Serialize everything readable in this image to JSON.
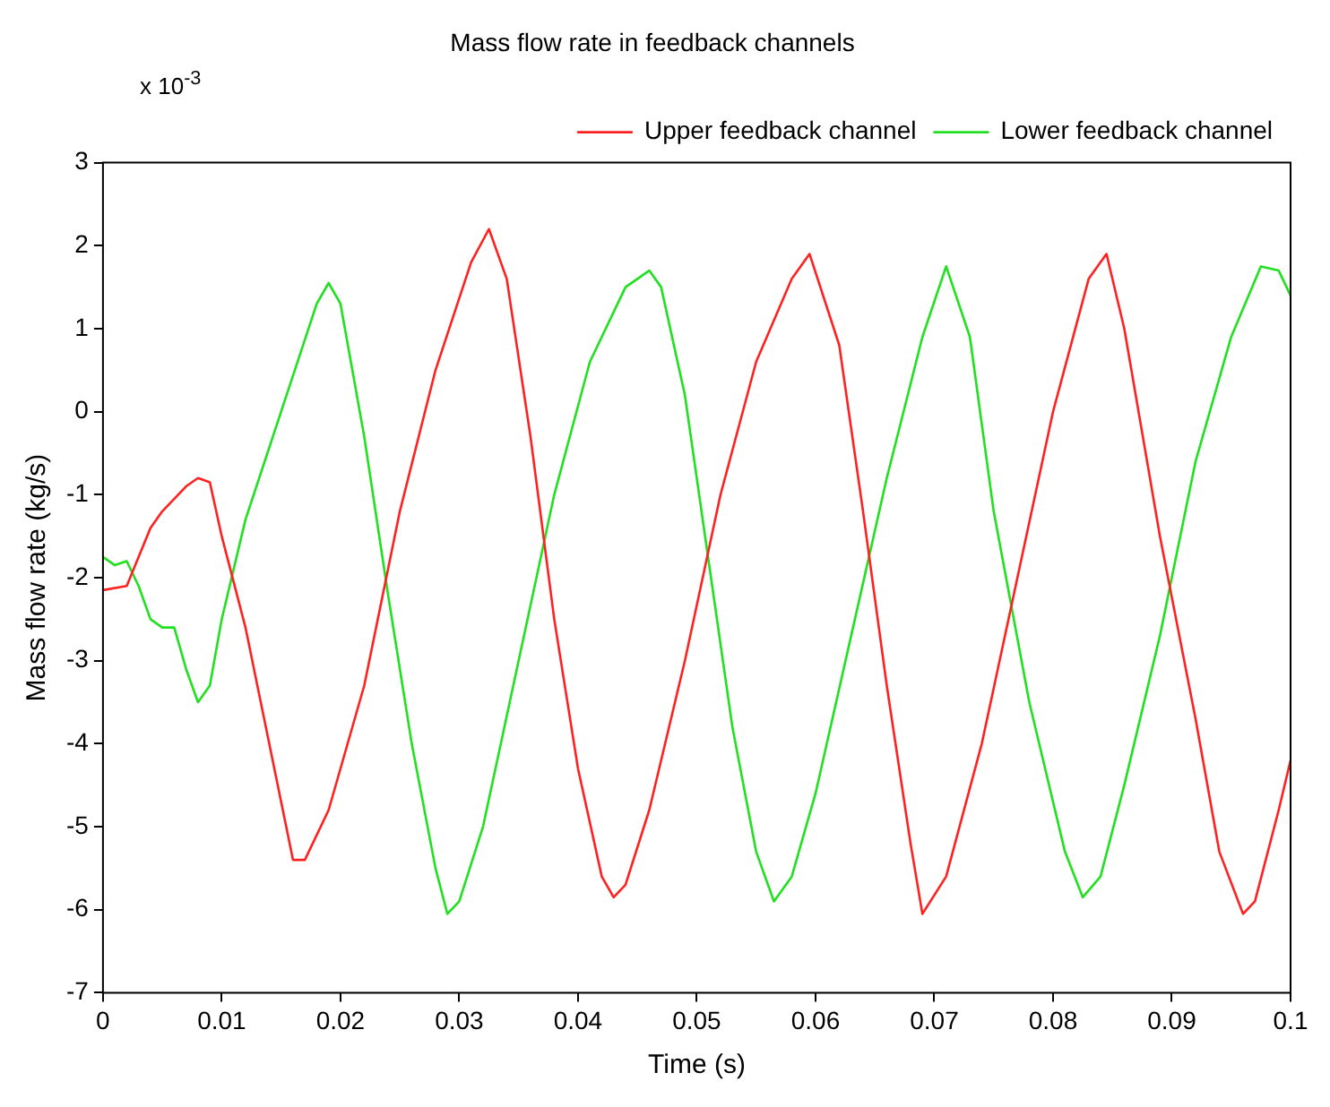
{
  "chart_data": {
    "type": "line",
    "title": "Mass flow rate in feedback channels",
    "xlabel": "Time (s)",
    "ylabel": "Mass flow rate (kg/s)",
    "annotations": [
      "x 10$^{-3}$"
    ],
    "xlim": [
      0,
      0.1
    ],
    "xticks": [
      0,
      0.01,
      0.02,
      0.03,
      0.04,
      0.05,
      0.06,
      0.07,
      0.08,
      0.09,
      0.1
    ],
    "ylim": [
      -7,
      3
    ],
    "yticks": [
      -7,
      -6,
      -5,
      -4,
      -3,
      -2,
      -1,
      0,
      1,
      2,
      3
    ],
    "grid": false,
    "legend": "top right",
    "marker": "none",
    "line_style": "solid",
    "series": [
      {
        "name": "Upper feedback channel",
        "color": "#ff2020",
        "x": [
          0,
          0.002,
          0.004,
          0.005,
          0.007,
          0.008,
          0.009,
          0.01,
          0.012,
          0.014,
          0.016,
          0.017,
          0.019,
          0.022,
          0.025,
          0.028,
          0.031,
          0.0325,
          0.034,
          0.036,
          0.038,
          0.04,
          0.042,
          0.043,
          0.044,
          0.046,
          0.049,
          0.052,
          0.055,
          0.058,
          0.0595,
          0.062,
          0.064,
          0.066,
          0.068,
          0.069,
          0.071,
          0.074,
          0.077,
          0.08,
          0.083,
          0.0845,
          0.086,
          0.089,
          0.092,
          0.094,
          0.096,
          0.097,
          0.099,
          0.1
        ],
        "values": [
          -2.15,
          -2.1,
          -1.4,
          -1.2,
          -0.9,
          -0.8,
          -0.85,
          -1.5,
          -2.6,
          -4,
          -5.4,
          -5.4,
          -4.8,
          -3.3,
          -1.2,
          0.5,
          1.8,
          2.2,
          1.6,
          -0.3,
          -2.5,
          -4.3,
          -5.6,
          -5.85,
          -5.7,
          -4.8,
          -3,
          -1,
          0.6,
          1.6,
          1.9,
          0.8,
          -1.2,
          -3.3,
          -5.2,
          -6.05,
          -5.6,
          -4,
          -2,
          0,
          1.6,
          1.9,
          1,
          -1.5,
          -3.7,
          -5.3,
          -6.05,
          -5.9,
          -4.8,
          -4.2
        ]
      },
      {
        "name": "Lower feedback channel",
        "color": "#20e020",
        "x": [
          0,
          0.001,
          0.002,
          0.003,
          0.004,
          0.005,
          0.006,
          0.007,
          0.008,
          0.009,
          0.01,
          0.012,
          0.015,
          0.018,
          0.019,
          0.02,
          0.022,
          0.024,
          0.026,
          0.028,
          0.029,
          0.03,
          0.032,
          0.035,
          0.038,
          0.041,
          0.044,
          0.046,
          0.047,
          0.049,
          0.051,
          0.053,
          0.055,
          0.0565,
          0.058,
          0.06,
          0.063,
          0.066,
          0.069,
          0.071,
          0.073,
          0.075,
          0.078,
          0.081,
          0.0825,
          0.084,
          0.086,
          0.089,
          0.092,
          0.095,
          0.0975,
          0.099,
          0.1
        ],
        "values": [
          -1.75,
          -1.85,
          -1.8,
          -2.1,
          -2.5,
          -2.6,
          -2.6,
          -3.1,
          -3.5,
          -3.3,
          -2.5,
          -1.3,
          0,
          1.3,
          1.55,
          1.3,
          -0.3,
          -2.2,
          -4,
          -5.5,
          -6.05,
          -5.9,
          -5,
          -3,
          -1,
          0.6,
          1.5,
          1.7,
          1.5,
          0.2,
          -1.8,
          -3.8,
          -5.3,
          -5.9,
          -5.6,
          -4.6,
          -2.7,
          -0.8,
          0.9,
          1.75,
          0.9,
          -1.2,
          -3.5,
          -5.3,
          -5.85,
          -5.6,
          -4.5,
          -2.7,
          -0.6,
          0.9,
          1.75,
          1.7,
          1.4
        ]
      }
    ]
  }
}
